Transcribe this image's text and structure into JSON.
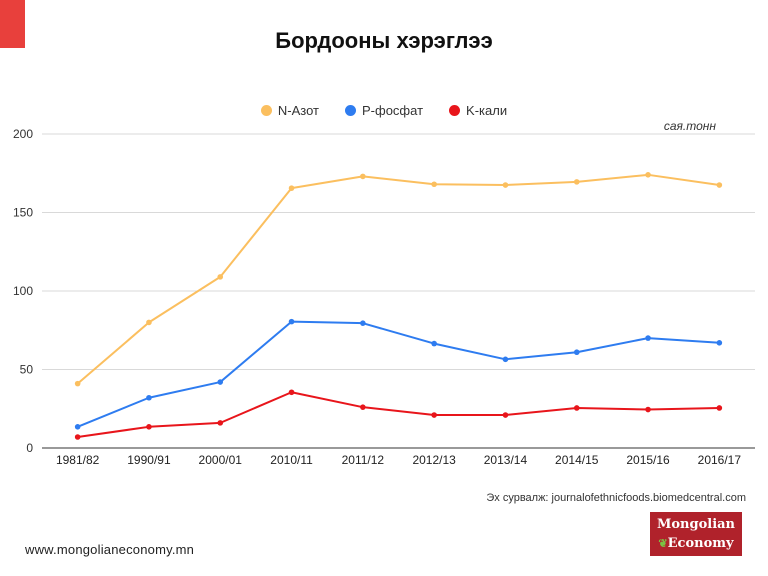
{
  "page": {
    "title": "Бордооны хэрэглээ",
    "unit": "сая.тонн",
    "source": "Эх сурвалж: journalofethnicfoods.biomedcentral.com",
    "website": "www.mongolianeconomy.mn",
    "logo_line1": "Mongolian",
    "logo_line2": "Economy"
  },
  "colors": {
    "accent": "#e8403c",
    "logo_bg": "#b0222b"
  },
  "chart_data": {
    "type": "line",
    "title": "Бордооны хэрэглээ",
    "xlabel": "",
    "ylabel": "",
    "ylim": [
      0,
      200
    ],
    "yticks": [
      0,
      50,
      100,
      150,
      200
    ],
    "grid": true,
    "legend_position": "top",
    "categories": [
      "1981/82",
      "1990/91",
      "2000/01",
      "2010/11",
      "2011/12",
      "2012/13",
      "2013/14",
      "2014/15",
      "2015/16",
      "2016/17"
    ],
    "series": [
      {
        "name": "N-Азот",
        "color": "#fbbf5f",
        "values": [
          41,
          80,
          109,
          165.5,
          173,
          168,
          167.5,
          169.5,
          174,
          167.5
        ]
      },
      {
        "name": "P-фосфат",
        "color": "#2e7cf0",
        "values": [
          13.5,
          32,
          42,
          80.5,
          79.5,
          66.5,
          56.5,
          61,
          70,
          67
        ]
      },
      {
        "name": "K-кали",
        "color": "#e8151b",
        "values": [
          7,
          13.5,
          16,
          35.5,
          26,
          21,
          21,
          25.5,
          24.5,
          25.5
        ]
      }
    ]
  }
}
